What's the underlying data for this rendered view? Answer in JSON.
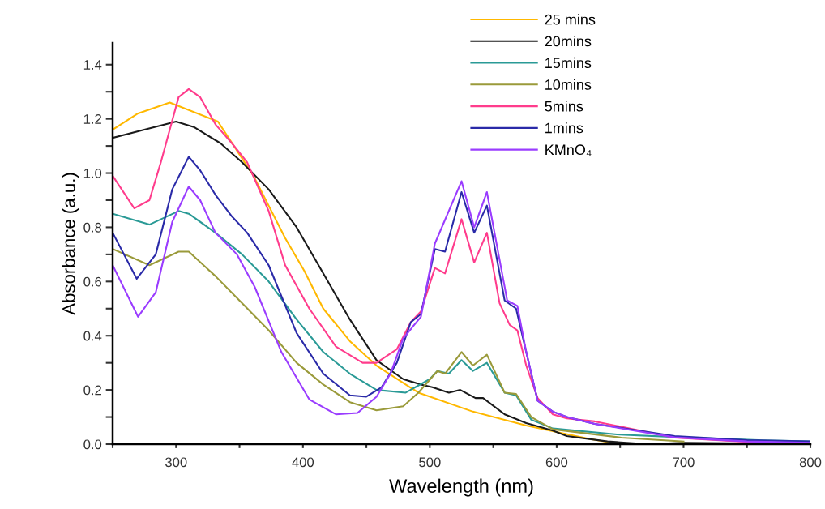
{
  "chart_data": {
    "type": "line",
    "xlabel": "Wavelength (nm)",
    "ylabel": "Absorbance (a.u.)",
    "xlim": [
      250,
      800
    ],
    "ylim": [
      0,
      1.48
    ],
    "xticks": [
      {
        "value": 250,
        "label": null
      },
      300,
      {
        "value": 350,
        "label": null
      },
      400,
      {
        "value": 450,
        "label": null
      },
      500,
      {
        "value": 550,
        "label": null
      },
      600,
      {
        "value": 650,
        "label": null
      },
      700,
      {
        "value": 750,
        "label": null
      },
      800
    ],
    "yticks": [
      {
        "value": 0,
        "label": "0.0"
      },
      {
        "value": 0.1,
        "label": null
      },
      {
        "value": 0.2,
        "label": "0.2"
      },
      {
        "value": 0.3,
        "label": null
      },
      {
        "value": 0.4,
        "label": "0.4"
      },
      {
        "value": 0.5,
        "label": null
      },
      {
        "value": 0.6,
        "label": "0.6"
      },
      {
        "value": 0.7,
        "label": null
      },
      {
        "value": 0.8,
        "label": "0.8"
      },
      {
        "value": 0.9,
        "label": null
      },
      {
        "value": 1.0,
        "label": "1.0"
      },
      {
        "value": 1.1,
        "label": null
      },
      {
        "value": 1.2,
        "label": "1.2"
      },
      {
        "value": 1.3,
        "label": null
      },
      {
        "value": 1.4,
        "label": "1.4"
      }
    ],
    "grid": false,
    "legend": "top",
    "marker": "none",
    "line_style": "solid",
    "series": [
      {
        "name": "25 mins",
        "color": "#ffb800",
        "x": [
          250,
          270,
          295,
          333,
          361,
          386,
          401,
          416,
          437,
          458,
          491,
          534,
          576,
          600,
          625,
          650
        ],
        "values": [
          1.16,
          1.22,
          1.26,
          1.19,
          0.99,
          0.76,
          0.64,
          0.5,
          0.38,
          0.29,
          0.19,
          0.12,
          0.069,
          0.045,
          0.02,
          0.0
        ]
      },
      {
        "name": "20mins",
        "color": "#1a1a1a",
        "x": [
          250,
          275,
          300,
          314,
          335,
          352,
          373,
          395,
          416,
          437,
          458,
          479,
          493,
          502,
          515,
          524,
          536,
          542,
          559,
          576,
          597,
          608,
          640,
          672,
          700,
          750,
          800
        ],
        "values": [
          1.13,
          1.16,
          1.19,
          1.17,
          1.11,
          1.04,
          0.94,
          0.8,
          0.63,
          0.46,
          0.31,
          0.24,
          0.22,
          0.21,
          0.19,
          0.2,
          0.17,
          0.17,
          0.11,
          0.078,
          0.05,
          0.03,
          0.01,
          0.0,
          0.005,
          0.003,
          0.0
        ]
      },
      {
        "name": "15mins",
        "color": "#2a9a96",
        "x": [
          250,
          279,
          302,
          310,
          331,
          352,
          373,
          395,
          416,
          437,
          458,
          481,
          500,
          506,
          515,
          525,
          534,
          545,
          559,
          568,
          580,
          597,
          650,
          700,
          763,
          800
        ],
        "values": [
          0.85,
          0.81,
          0.86,
          0.85,
          0.78,
          0.7,
          0.6,
          0.46,
          0.34,
          0.26,
          0.2,
          0.19,
          0.24,
          0.27,
          0.26,
          0.31,
          0.27,
          0.3,
          0.19,
          0.18,
          0.09,
          0.058,
          0.035,
          0.025,
          0.014,
          0.01
        ]
      },
      {
        "name": "10mins",
        "color": "#9a9a3a",
        "x": [
          250,
          279,
          302,
          310,
          331,
          352,
          373,
          395,
          416,
          437,
          458,
          479,
          491,
          506,
          512,
          525,
          534,
          545,
          559,
          568,
          580,
          597,
          651,
          700
        ],
        "values": [
          0.72,
          0.66,
          0.71,
          0.71,
          0.62,
          0.52,
          0.42,
          0.3,
          0.22,
          0.155,
          0.125,
          0.14,
          0.19,
          0.27,
          0.26,
          0.34,
          0.29,
          0.33,
          0.19,
          0.185,
          0.1,
          0.055,
          0.024,
          0.01
        ]
      },
      {
        "name": "5mins",
        "color": "#ff3c8c",
        "x": [
          250,
          267,
          279,
          288,
          302,
          310,
          319,
          331,
          344,
          356,
          373,
          386,
          405,
          426,
          447,
          458,
          474,
          485,
          493,
          504,
          512,
          525,
          535,
          545,
          555,
          563,
          569,
          576,
          585,
          597,
          608,
          630,
          693,
          750,
          800
        ],
        "values": [
          0.99,
          0.87,
          0.9,
          1.04,
          1.28,
          1.31,
          1.28,
          1.18,
          1.11,
          1.04,
          0.86,
          0.66,
          0.5,
          0.36,
          0.3,
          0.3,
          0.35,
          0.45,
          0.49,
          0.65,
          0.63,
          0.83,
          0.67,
          0.78,
          0.52,
          0.44,
          0.42,
          0.29,
          0.17,
          0.11,
          0.095,
          0.084,
          0.024,
          0.008,
          0.0
        ]
      },
      {
        "name": "1mins",
        "color": "#2a2aa8",
        "x": [
          250,
          269,
          284,
          297,
          310,
          319,
          331,
          344,
          356,
          373,
          395,
          416,
          437,
          450,
          462,
          474,
          485,
          493,
          504,
          512,
          525,
          535,
          545,
          559,
          568,
          576,
          585,
          597,
          608,
          630,
          693,
          750,
          800
        ],
        "values": [
          0.78,
          0.61,
          0.7,
          0.94,
          1.06,
          1.01,
          0.92,
          0.84,
          0.78,
          0.66,
          0.41,
          0.26,
          0.18,
          0.175,
          0.21,
          0.3,
          0.45,
          0.48,
          0.72,
          0.71,
          0.93,
          0.78,
          0.88,
          0.53,
          0.5,
          0.34,
          0.16,
          0.12,
          0.1,
          0.075,
          0.03,
          0.015,
          0.01
        ]
      },
      {
        "name": "KMnO₄",
        "color": "#9a3cff",
        "x": [
          250,
          270,
          284,
          297,
          310,
          319,
          331,
          348,
          362,
          383,
          405,
          426,
          443,
          458,
          469,
          479,
          493,
          504,
          525,
          535,
          545,
          561,
          569,
          576,
          585,
          597,
          608,
          630,
          693,
          750,
          800
        ],
        "values": [
          0.66,
          0.47,
          0.56,
          0.82,
          0.95,
          0.9,
          0.78,
          0.7,
          0.58,
          0.34,
          0.165,
          0.11,
          0.115,
          0.175,
          0.26,
          0.39,
          0.47,
          0.74,
          0.97,
          0.8,
          0.93,
          0.53,
          0.51,
          0.34,
          0.16,
          0.12,
          0.1,
          0.075,
          0.025,
          0.01,
          0.005
        ]
      }
    ]
  }
}
